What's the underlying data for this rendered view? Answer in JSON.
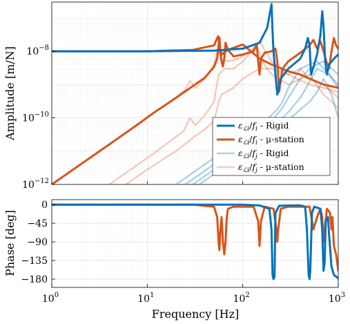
{
  "colors": {
    "rigid": "#0072BD",
    "station": "#D95319",
    "rigid_light": "#A9C9E6",
    "station_light": "#F3C2AD",
    "grid": "#d8d8d8"
  },
  "chart_data": [
    {
      "type": "line",
      "name": "amplitude",
      "xscale": "log",
      "yscale": "log",
      "xlim": [
        1,
        1000
      ],
      "ylim": [
        1e-12,
        3e-07
      ],
      "ylabel": "Amplitude [m/N]",
      "xlabel": "",
      "grid": true,
      "y_ticks": [
        {
          "value": 1e-08,
          "base": "10",
          "exp": "−8"
        },
        {
          "value": 1e-10,
          "base": "10",
          "exp": "−10"
        },
        {
          "value": 1e-12,
          "base": "10",
          "exp": "−12"
        }
      ],
      "legend": {
        "placement": "lower-right",
        "entries": [
          {
            "math": "ε",
            "sub": "ℒi",
            "den": "f",
            "densub": "i",
            "suffix": " - Rigid",
            "style": "rigid"
          },
          {
            "math": "ε",
            "sub": "ℒi",
            "den": "f",
            "densub": "i",
            "suffix": " - μ-station",
            "style": "station"
          },
          {
            "math": "ε",
            "sub": "ℒi",
            "den": "f",
            "densub": "j",
            "suffix": " - Rigid",
            "style": "rigid_light"
          },
          {
            "math": "ε",
            "sub": "ℒi",
            "den": "f",
            "densub": "j",
            "suffix": " - μ-station",
            "style": "station_light"
          }
        ]
      },
      "series": [
        {
          "style": "rigid_light",
          "x": [
            20,
            40,
            60,
            80,
            100,
            120,
            150,
            180,
            200,
            230,
            260,
            300,
            400,
            600,
            800,
            1000
          ],
          "y": [
            1e-12,
            4e-12,
            9e-12,
            1.6e-11,
            2.5e-11,
            3.6e-11,
            6e-11,
            9e-11,
            1.2e-10,
            1.8e-10,
            3e-10,
            8e-10,
            3e-09,
            5e-09,
            2e-09,
            8e-10
          ]
        },
        {
          "style": "rigid_light",
          "x": [
            25,
            50,
            75,
            100,
            130,
            160,
            200,
            260,
            300,
            400,
            500,
            700,
            1000
          ],
          "y": [
            1e-12,
            4e-12,
            9e-12,
            1.6e-11,
            2.7e-11,
            4.5e-11,
            8e-11,
            2e-10,
            4e-10,
            1.5e-09,
            3e-09,
            5e-09,
            2e-09
          ]
        },
        {
          "style": "rigid_light",
          "x": [
            30,
            60,
            90,
            120,
            160,
            200,
            250,
            300,
            400,
            500,
            600,
            800,
            1000
          ],
          "y": [
            1e-12,
            4e-12,
            9e-12,
            1.6e-11,
            3e-11,
            5e-11,
            9e-11,
            1.5e-10,
            4e-10,
            1.2e-09,
            3e-09,
            2e-09,
            1e-09
          ]
        },
        {
          "style": "rigid_light",
          "x": [
            35,
            70,
            100,
            140,
            200,
            260,
            320,
            400,
            500,
            600,
            700,
            850,
            1000
          ],
          "y": [
            1e-12,
            4e-12,
            8e-12,
            1.6e-11,
            3.5e-11,
            6e-11,
            1e-10,
            1.8e-10,
            3e-10,
            6e-10,
            1.5e-09,
            5e-10,
            1e-10
          ]
        },
        {
          "style": "station_light",
          "x": [
            1,
            2,
            4,
            8,
            12,
            16,
            20,
            25,
            28,
            32,
            40,
            50,
            56,
            60,
            70,
            90,
            120,
            150,
            200,
            300,
            500,
            700,
            1000
          ],
          "y": [
            1e-12,
            4e-12,
            1.6e-11,
            6.4e-11,
            1.5e-10,
            2.6e-10,
            4.2e-10,
            7e-10,
            1.3e-09,
            8e-10,
            1.5e-09,
            4e-09,
            1.5e-08,
            6e-09,
            5e-09,
            6e-09,
            1e-08,
            2e-08,
            5e-09,
            2e-09,
            1e-09,
            8e-10,
            6e-10
          ]
        },
        {
          "style": "station_light",
          "x": [
            4,
            8,
            12,
            16,
            20,
            24,
            28,
            32,
            40,
            50,
            56,
            65,
            80,
            100,
            140,
            160,
            200,
            300,
            500,
            700,
            1000
          ],
          "y": [
            1e-12,
            4e-12,
            9e-12,
            1.7e-11,
            2.7e-11,
            4e-11,
            1e-10,
            6e-11,
            1.2e-10,
            3e-10,
            2e-09,
            3e-09,
            3e-09,
            5e-09,
            1.5e-08,
            5e-09,
            2e-09,
            1e-09,
            2e-09,
            5e-10,
            2e-10
          ]
        },
        {
          "style": "station_light",
          "x": [
            6,
            10,
            15,
            20,
            26,
            30,
            40,
            50,
            56,
            60,
            80,
            100,
            150,
            200,
            300,
            400,
            500,
            700,
            1000
          ],
          "y": [
            1e-12,
            2.8e-12,
            6e-12,
            1e-11,
            1.8e-11,
            2.5e-11,
            4.5e-11,
            8e-11,
            3e-10,
            5e-10,
            8e-10,
            1.5e-09,
            3e-09,
            3e-09,
            2e-09,
            3e-09,
            1.5e-09,
            1e-09,
            4e-10
          ]
        },
        {
          "style": "station",
          "x": [
            1,
            2,
            4,
            8,
            12,
            16,
            20,
            30,
            40,
            50,
            54,
            56,
            57,
            58,
            60,
            70,
            100,
            150,
            200,
            300,
            400,
            500,
            700,
            1000
          ],
          "y": [
            1e-12,
            4e-12,
            1.6e-11,
            6.4e-11,
            1.5e-10,
            2.6e-10,
            4e-10,
            9e-10,
            1.6e-09,
            3.4e-09,
            6e-09,
            1.6e-08,
            2.6e-08,
            1.2e-08,
            8e-09,
            1.1e-08,
            1.6e-08,
            6e-09,
            4e-09,
            2.5e-09,
            2e-09,
            1.5e-09,
            1e-09,
            8e-10
          ]
        },
        {
          "style": "station",
          "x": [
            1,
            10,
            30,
            50,
            53,
            55,
            56,
            57,
            60,
            62,
            64,
            66,
            70,
            80,
            100,
            130,
            140,
            145,
            150,
            155,
            170,
            200,
            220,
            230,
            240,
            260,
            300,
            400,
            500,
            550,
            600,
            650,
            700,
            750,
            800,
            850,
            900,
            950,
            1000
          ],
          "y": [
            1e-08,
            1e-08,
            1.1e-08,
            1.5e-08,
            2.2e-08,
            2.8e-08,
            2.2e-08,
            1.2e-08,
            5e-09,
            3.5e-09,
            6e-09,
            1.8e-08,
            1.1e-08,
            7e-09,
            8e-09,
            1e-08,
            1.6e-08,
            5e-09,
            2e-09,
            6e-09,
            9e-09,
            1e-08,
            1.2e-08,
            5e-09,
            6e-10,
            3e-09,
            5e-09,
            9e-09,
            1.5e-08,
            2.2e-08,
            1.2e-08,
            2e-08,
            1e-08,
            5e-09,
            3e-09,
            1e-08,
            2.5e-08,
            1.5e-08,
            1.2e-08
          ]
        },
        {
          "style": "rigid",
          "x": [
            1,
            10,
            50,
            100,
            150,
            180,
            200,
            205,
            210,
            220,
            230,
            250,
            300,
            400,
            450,
            480,
            500,
            520,
            560,
            600,
            650,
            680,
            700,
            730,
            760,
            800,
            900,
            1000
          ],
          "y": [
            1e-08,
            1e-08,
            1.05e-08,
            1.2e-08,
            1.8e-08,
            5e-08,
            2.6e-07,
            4e-08,
            1e-08,
            2e-09,
            5e-10,
            1.5e-09,
            3e-09,
            6e-09,
            1.2e-08,
            2.5e-08,
            1.5e-08,
            2e-09,
            4e-09,
            8e-09,
            3e-08,
            1.6e-07,
            6e-08,
            5e-09,
            2e-09,
            4e-09,
            6e-09,
            8e-09
          ]
        }
      ]
    },
    {
      "type": "line",
      "name": "phase",
      "xscale": "log",
      "xlim": [
        1,
        1000
      ],
      "ylim": [
        -200,
        12
      ],
      "xlabel": "Frequency [Hz]",
      "ylabel": "Phase [deg]",
      "grid": true,
      "y_ticks": [
        0,
        -45,
        -90,
        -135,
        -180
      ],
      "x_ticks": [
        {
          "value": 1,
          "base": "10",
          "exp": "0"
        },
        {
          "value": 10,
          "base": "10",
          "exp": "1"
        },
        {
          "value": 100,
          "base": "10",
          "exp": "2"
        },
        {
          "value": 1000,
          "base": "10",
          "exp": "3"
        }
      ],
      "series": [
        {
          "style": "station",
          "x": [
            1,
            30,
            50,
            54,
            56,
            57,
            58,
            60,
            62,
            64,
            66,
            68,
            70,
            80,
            130,
            145,
            150,
            155,
            170,
            210,
            225,
            230,
            235,
            250,
            300,
            500,
            550,
            600,
            650,
            680,
            700,
            720,
            760,
            820,
            850,
            870,
            900,
            950,
            1000
          ],
          "y": [
            0,
            0,
            -5,
            -30,
            -95,
            -110,
            -70,
            -30,
            -90,
            -120,
            -90,
            -30,
            -10,
            -5,
            -5,
            -40,
            -100,
            -40,
            -5,
            -10,
            -60,
            -90,
            -60,
            -10,
            -5,
            -5,
            -60,
            -30,
            -10,
            -30,
            -90,
            -60,
            -10,
            -20,
            -60,
            -30,
            -100,
            -120,
            -160
          ]
        },
        {
          "style": "rigid",
          "x": [
            1,
            100,
            150,
            190,
            200,
            205,
            210,
            215,
            220,
            240,
            300,
            400,
            450,
            470,
            490,
            500,
            510,
            530,
            560,
            650,
            680,
            700,
            720,
            740,
            780,
            800,
            850,
            900,
            1000
          ],
          "y": [
            0,
            0,
            -2,
            -10,
            -60,
            -170,
            -180,
            -175,
            -20,
            -3,
            -2,
            -2,
            -5,
            -60,
            -170,
            -180,
            -160,
            -20,
            -5,
            -10,
            -60,
            -160,
            -140,
            -40,
            -30,
            -70,
            -150,
            -170,
            -178
          ]
        }
      ]
    }
  ]
}
